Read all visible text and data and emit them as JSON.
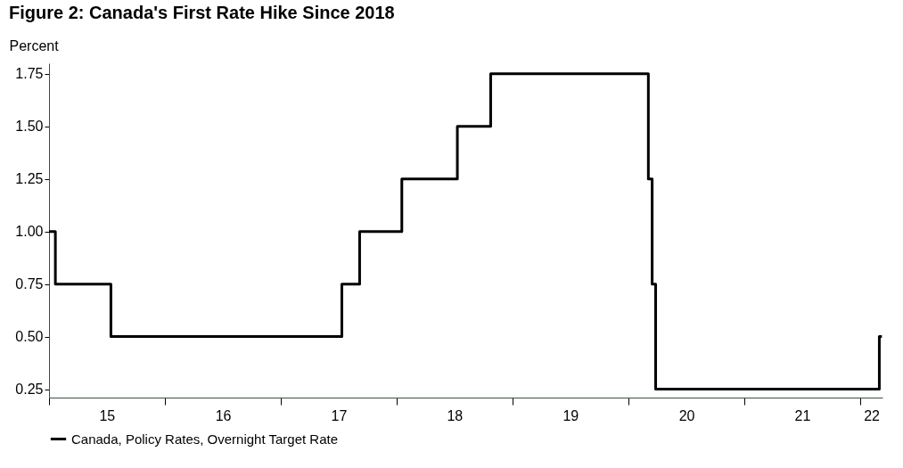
{
  "chart_data": {
    "type": "step",
    "title": "Figure 2: Canada's First Rate Hike Since 2018",
    "ylabel": "Percent",
    "x": [
      "2015-01-01",
      "2015-01-21",
      "2015-07-15",
      "2017-07-12",
      "2017-09-06",
      "2018-01-17",
      "2018-07-11",
      "2018-10-24",
      "2020-03-04",
      "2020-03-16",
      "2020-03-27",
      "2022-03-02",
      "2022-03-10"
    ],
    "series": [
      {
        "name": "Canada, Policy Rates, Overnight Target Rate",
        "color": "#000000",
        "values": [
          1.0,
          0.75,
          0.5,
          0.75,
          1.0,
          1.25,
          1.5,
          1.75,
          1.25,
          0.75,
          0.25,
          0.5,
          0.5
        ]
      }
    ],
    "xlim": [
      "2015-01-01",
      "2022-03-12"
    ],
    "xticks": [
      {
        "value": "2015-01-01",
        "label": null
      },
      {
        "value": "2015-07-02",
        "label": "15"
      },
      {
        "value": "2016-01-01",
        "label": null
      },
      {
        "value": "2016-07-02",
        "label": "16"
      },
      {
        "value": "2017-01-01",
        "label": null
      },
      {
        "value": "2017-07-02",
        "label": "17"
      },
      {
        "value": "2018-01-01",
        "label": null
      },
      {
        "value": "2018-07-02",
        "label": "18"
      },
      {
        "value": "2019-01-01",
        "label": null
      },
      {
        "value": "2019-07-02",
        "label": "19"
      },
      {
        "value": "2020-01-01",
        "label": null
      },
      {
        "value": "2020-07-02",
        "label": "20"
      },
      {
        "value": "2021-01-01",
        "label": null
      },
      {
        "value": "2021-07-02",
        "label": "21"
      },
      {
        "value": "2022-01-01",
        "label": null
      },
      {
        "value": "2022-02-05",
        "label": "22"
      }
    ],
    "ylim": [
      0.21,
      1.8
    ],
    "yticks": [
      0.25,
      {
        "value": 0.5,
        "label": "0.50"
      },
      0.75,
      {
        "value": 1.0,
        "label": "1.00"
      },
      1.25,
      {
        "value": 1.5,
        "label": "1.50"
      },
      1.75
    ],
    "grid": false,
    "legend": "bottom left",
    "line_style": "solid",
    "marker": "none"
  }
}
